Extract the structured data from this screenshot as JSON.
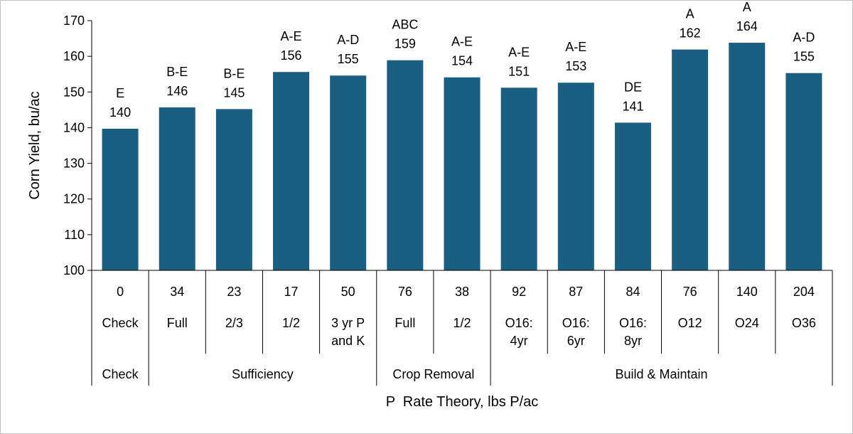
{
  "chart_data": {
    "type": "bar",
    "ylabel": "Corn Yield, bu/ac",
    "xlabel": "P  Rate Theory, lbs P/ac",
    "ylim": [
      100,
      170
    ],
    "yticks": [
      100,
      110,
      120,
      130,
      140,
      150,
      160,
      170
    ],
    "grid": false,
    "legend": "none",
    "bar_color": "#1a5e82",
    "categories": [
      {
        "rate": "0",
        "label": [
          "Check"
        ]
      },
      {
        "rate": "34",
        "label": [
          "Full"
        ]
      },
      {
        "rate": "23",
        "label": [
          "2/3"
        ]
      },
      {
        "rate": "17",
        "label": [
          "1/2"
        ]
      },
      {
        "rate": "50",
        "label": [
          "3 yr P",
          "and K"
        ]
      },
      {
        "rate": "76",
        "label": [
          "Full"
        ]
      },
      {
        "rate": "38",
        "label": [
          "1/2"
        ]
      },
      {
        "rate": "92",
        "label": [
          "O16:",
          "4yr"
        ]
      },
      {
        "rate": "87",
        "label": [
          "O16:",
          "6yr"
        ]
      },
      {
        "rate": "84",
        "label": [
          "O16:",
          "8yr"
        ]
      },
      {
        "rate": "76",
        "label": [
          "O12"
        ]
      },
      {
        "rate": "140",
        "label": [
          "O24"
        ]
      },
      {
        "rate": "204",
        "label": [
          "O36"
        ]
      }
    ],
    "values": [
      139.7,
      145.7,
      145.2,
      155.6,
      154.6,
      158.9,
      154.1,
      151.2,
      152.6,
      141.4,
      161.9,
      163.8,
      155.3
    ],
    "value_labels": [
      "140",
      "146",
      "145",
      "156",
      "155",
      "159",
      "154",
      "151",
      "153",
      "141",
      "162",
      "164",
      "155"
    ],
    "significance_letters": [
      "E",
      "B-E",
      "B-E",
      "A-E",
      "A-D",
      "ABC",
      "A-E",
      "A-E",
      "A-E",
      "DE",
      "A",
      "A",
      "A-D"
    ],
    "groups": [
      {
        "name": "Check",
        "start": 0,
        "end": 0
      },
      {
        "name": "Sufficiency",
        "start": 1,
        "end": 4
      },
      {
        "name": "Crop Removal",
        "start": 5,
        "end": 6
      },
      {
        "name": "Build & Maintain",
        "start": 7,
        "end": 12
      }
    ]
  }
}
